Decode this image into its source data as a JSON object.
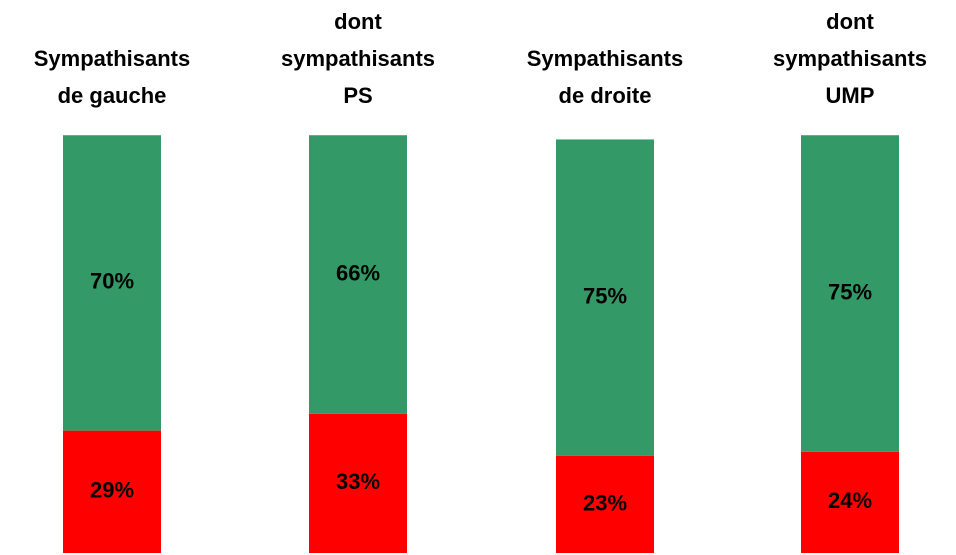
{
  "chart_data": {
    "type": "stacked_bar",
    "categories": [
      [
        "Sympathisants",
        "de gauche"
      ],
      [
        "dont",
        "sympathisants",
        "PS"
      ],
      [
        "Sympathisants",
        "de droite"
      ],
      [
        "dont",
        "sympathisants",
        "UMP"
      ]
    ],
    "series": [
      {
        "color": "#ff0000",
        "values": [
          29,
          33,
          23,
          24
        ],
        "value_labels": [
          "29%",
          "33%",
          "23%",
          "24%"
        ]
      },
      {
        "color": "#339966",
        "values": [
          70,
          66,
          75,
          75
        ],
        "value_labels": [
          "70%",
          "66%",
          "75%",
          "75%"
        ]
      }
    ]
  }
}
